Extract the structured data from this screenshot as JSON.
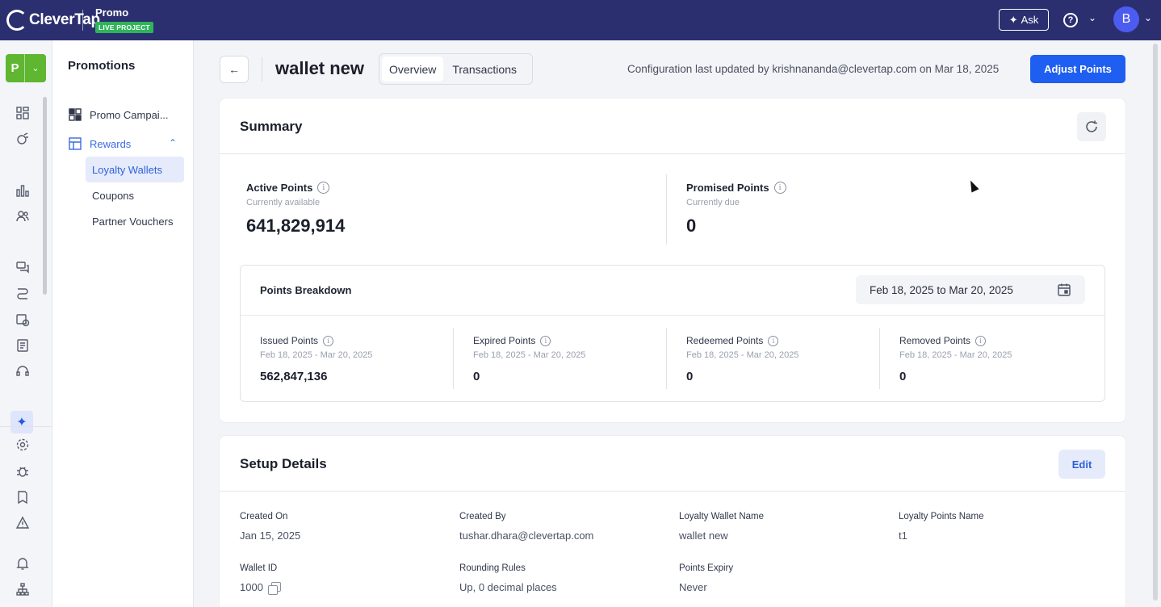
{
  "topbar": {
    "logo": "CleverTap",
    "project_name": "Promo",
    "project_badge": "LIVE PROJECT",
    "ask_label": "Ask",
    "avatar_initial": "B"
  },
  "rail": {
    "product_letter": "P",
    "icons": [
      "dashboard-icon",
      "campaigns-icon",
      "analytics-icon",
      "segments-icon",
      "messages-icon",
      "journeys-icon",
      "schedule-icon",
      "catalog-icon",
      "support-icon",
      "ai-sparkle-icon",
      "settings-icon",
      "debug-icon",
      "docs-icon",
      "alerts-icon",
      "notifications-icon",
      "org-chart-icon"
    ]
  },
  "subnav": {
    "title": "Promotions",
    "items": [
      {
        "label": "Promo Campai...",
        "icon": "grid-icon"
      },
      {
        "label": "Rewards",
        "icon": "layout-icon"
      }
    ],
    "children": [
      "Loyalty Wallets",
      "Coupons",
      "Partner Vouchers"
    ]
  },
  "header": {
    "title": "wallet new",
    "tabs": [
      "Overview",
      "Transactions"
    ],
    "config_text": "Configuration last updated by krishnananda@clevertap.com on Mar 18, 2025",
    "adjust_label": "Adjust Points"
  },
  "summary": {
    "title": "Summary",
    "active": {
      "label": "Active Points",
      "sub": "Currently available",
      "value": "641,829,914"
    },
    "promised": {
      "label": "Promised Points",
      "sub": "Currently due",
      "value": "0"
    },
    "breakdown": {
      "title": "Points Breakdown",
      "date_range": "Feb 18, 2025 to Mar 20, 2025",
      "columns": [
        {
          "label": "Issued Points",
          "range": "Feb 18, 2025 - Mar 20, 2025",
          "value": "562,847,136"
        },
        {
          "label": "Expired Points",
          "range": "Feb 18, 2025 - Mar 20, 2025",
          "value": "0"
        },
        {
          "label": "Redeemed Points",
          "range": "Feb 18, 2025 - Mar 20, 2025",
          "value": "0"
        },
        {
          "label": "Removed Points",
          "range": "Feb 18, 2025 - Mar 20, 2025",
          "value": "0"
        }
      ]
    }
  },
  "setup": {
    "title": "Setup Details",
    "edit_label": "Edit",
    "fields": [
      {
        "label": "Created On",
        "value": "Jan 15, 2025"
      },
      {
        "label": "Created By",
        "value": "tushar.dhara@clevertap.com"
      },
      {
        "label": "Loyalty Wallet Name",
        "value": "wallet new"
      },
      {
        "label": "Loyalty Points Name",
        "value": "t1"
      },
      {
        "label": "Wallet ID",
        "value": "1000"
      },
      {
        "label": "Rounding Rules",
        "value": "Up, 0 decimal places"
      },
      {
        "label": "Points Expiry",
        "value": "Never"
      }
    ]
  }
}
